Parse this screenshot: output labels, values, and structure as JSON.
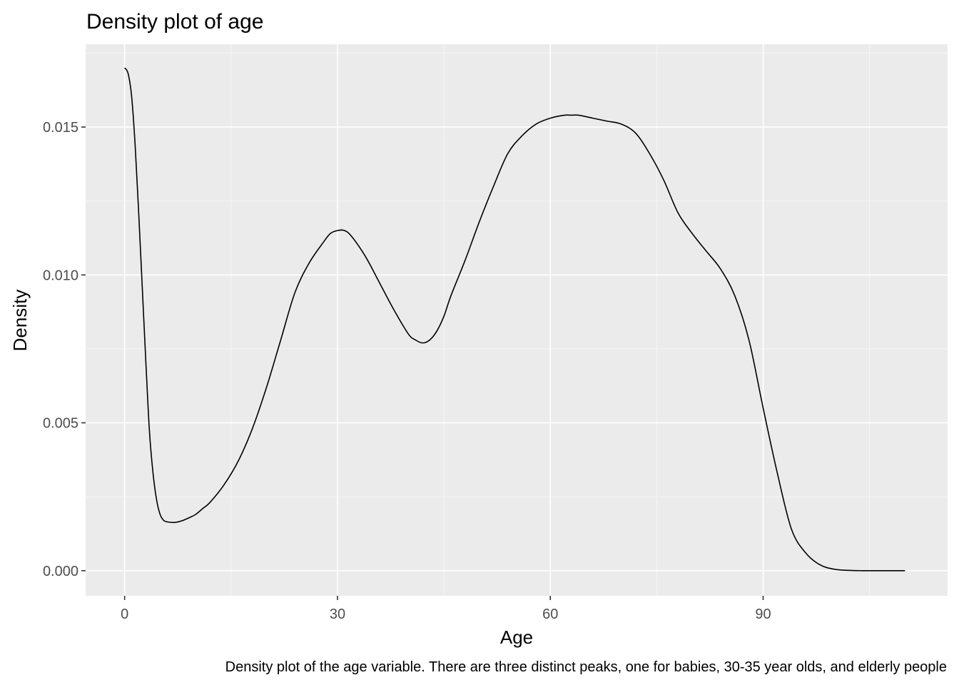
{
  "chart_data": {
    "type": "line",
    "title": "Density plot of age",
    "xlabel": "Age",
    "ylabel": "Density",
    "caption": "Density plot of the age variable. There are three distinct peaks, one for babies, 30-35 year olds, and elderly people",
    "xlim": [
      -5.5,
      116
    ],
    "ylim": [
      -0.00085,
      0.0178
    ],
    "x_ticks": [
      0,
      30,
      60,
      90
    ],
    "x_tick_labels": [
      "0",
      "30",
      "60",
      "90"
    ],
    "y_ticks": [
      0,
      0.005,
      0.01,
      0.015
    ],
    "y_tick_labels": [
      "0.000",
      "0.005",
      "0.010",
      "0.015"
    ],
    "grid": true,
    "series": [
      {
        "x": [
          0,
          0.5,
          1,
          1.5,
          2,
          2.5,
          3,
          3.5,
          4,
          4.5,
          5,
          5.5,
          6,
          7,
          8,
          9,
          10,
          11,
          12,
          14,
          16,
          18,
          20,
          22,
          24,
          26,
          28,
          29,
          30,
          31,
          32,
          34,
          36,
          38,
          40,
          41,
          42,
          43,
          44,
          45,
          46,
          48,
          50,
          52,
          54,
          56,
          58,
          60,
          62,
          63,
          64,
          66,
          68,
          70,
          72,
          74,
          76,
          78,
          80,
          82,
          84,
          86,
          88,
          90,
          92,
          94,
          96,
          98,
          100,
          102,
          104,
          106,
          108,
          110
        ],
        "y": [
          0.017,
          0.0168,
          0.016,
          0.0143,
          0.012,
          0.0095,
          0.007,
          0.0047,
          0.0033,
          0.0024,
          0.0019,
          0.0017,
          0.00165,
          0.00163,
          0.00168,
          0.00178,
          0.0019,
          0.0021,
          0.0023,
          0.0029,
          0.0037,
          0.0048,
          0.0062,
          0.0078,
          0.0094,
          0.0104,
          0.0111,
          0.0114,
          0.0115,
          0.0115,
          0.0113,
          0.0106,
          0.0097,
          0.0088,
          0.008,
          0.0078,
          0.0077,
          0.0078,
          0.0081,
          0.0086,
          0.0093,
          0.0105,
          0.0118,
          0.013,
          0.0141,
          0.0147,
          0.0151,
          0.0153,
          0.0154,
          0.0154,
          0.0154,
          0.0153,
          0.0152,
          0.0151,
          0.0148,
          0.0141,
          0.0132,
          0.0121,
          0.0114,
          0.0108,
          0.0102,
          0.0093,
          0.0078,
          0.0055,
          0.0033,
          0.0014,
          0.0006,
          0.0002,
          5e-05,
          1e-05,
          0.0,
          0.0,
          0.0,
          0.0
        ]
      }
    ],
    "colors": {
      "panel_background": "#ebebeb",
      "grid_major": "#ffffff",
      "grid_minor": "#f5f5f5",
      "line": "#000000"
    }
  }
}
